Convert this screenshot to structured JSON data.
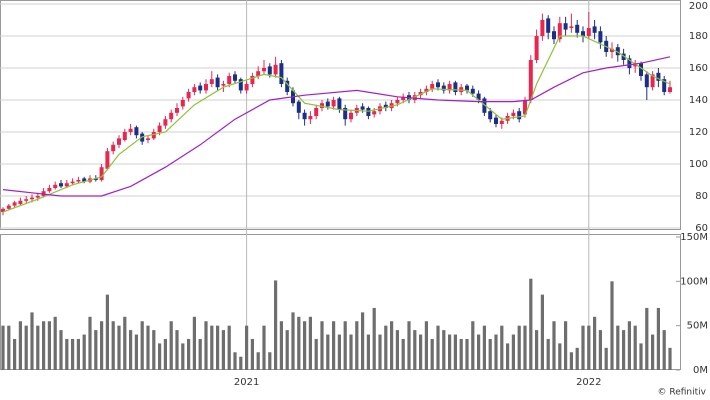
{
  "chart_data": [
    {
      "type": "candlestick",
      "grid": true,
      "up_color": "#e8264f",
      "down_color": "#1c2f86",
      "ylim": [
        60,
        200
      ],
      "yticks": [
        60,
        80,
        100,
        120,
        140,
        160,
        180,
        200
      ],
      "categories": [
        null,
        null,
        null,
        null,
        null,
        null,
        null,
        null,
        null,
        null,
        null,
        null,
        null,
        null,
        null,
        null,
        null,
        null,
        null,
        null,
        null,
        null,
        null,
        null,
        null,
        null,
        null,
        null,
        null,
        null,
        null,
        null,
        null,
        null,
        null,
        null,
        null,
        null,
        null,
        null,
        null,
        null,
        "2021",
        null,
        null,
        null,
        null,
        null,
        null,
        null,
        null,
        null,
        null,
        null,
        null,
        null,
        null,
        null,
        null,
        null,
        null,
        null,
        null,
        null,
        null,
        null,
        null,
        null,
        null,
        null,
        null,
        null,
        null,
        null,
        null,
        null,
        null,
        null,
        null,
        null,
        null,
        null,
        null,
        null,
        null,
        null,
        null,
        null,
        null,
        null,
        null,
        null,
        null,
        null,
        null,
        null,
        null,
        null,
        null,
        null,
        null,
        "2022",
        null,
        null,
        null,
        null,
        null,
        null,
        null,
        null,
        null,
        null,
        null,
        null,
        null,
        null
      ],
      "open": [
        70,
        72,
        74,
        75,
        77,
        78,
        79,
        80,
        83,
        85,
        88,
        86,
        88,
        89,
        91,
        89,
        91,
        90,
        97,
        108,
        112,
        115,
        120,
        123,
        119,
        115,
        116,
        120,
        124,
        128,
        132,
        136,
        141,
        145,
        149,
        146,
        150,
        154,
        149,
        150,
        156,
        153,
        146,
        150,
        155,
        158,
        161,
        156,
        163,
        152,
        146,
        139,
        132,
        128,
        130,
        135,
        139,
        136,
        141,
        135,
        128,
        132,
        136,
        135,
        131,
        133,
        137,
        135,
        138,
        140,
        143,
        140,
        143,
        145,
        147,
        151,
        149,
        146,
        151,
        145,
        149,
        147,
        144,
        141,
        133,
        129,
        125,
        127,
        130,
        133,
        131,
        140,
        165,
        180,
        191,
        183,
        178,
        188,
        185,
        187,
        183,
        180,
        186,
        183,
        177,
        170,
        173,
        169,
        166,
        161,
        163,
        156,
        148,
        157,
        153,
        145
      ],
      "high": [
        73,
        75,
        77,
        79,
        80,
        81,
        82,
        85,
        87,
        89,
        90,
        90,
        91,
        92,
        92,
        93,
        93,
        100,
        110,
        114,
        118,
        122,
        125,
        124,
        120,
        118,
        122,
        126,
        130,
        134,
        138,
        142,
        147,
        150,
        151,
        153,
        158,
        156,
        152,
        157,
        158,
        154,
        152,
        157,
        161,
        165,
        163,
        167,
        165,
        154,
        148,
        140,
        134,
        133,
        137,
        140,
        141,
        142,
        142,
        137,
        134,
        137,
        138,
        136,
        135,
        138,
        139,
        140,
        142,
        144,
        145,
        145,
        147,
        149,
        152,
        153,
        151,
        152,
        152,
        150,
        150,
        149,
        146,
        142,
        135,
        131,
        129,
        132,
        134,
        135,
        142,
        168,
        184,
        194,
        193,
        186,
        192,
        192,
        194,
        190,
        186,
        195,
        190,
        186,
        180,
        176,
        175,
        172,
        168,
        165,
        164,
        158,
        158,
        160,
        155,
        152
      ],
      "low": [
        68,
        71,
        73,
        74,
        75,
        76,
        77,
        79,
        82,
        84,
        85,
        85,
        87,
        88,
        88,
        88,
        89,
        89,
        96,
        106,
        110,
        114,
        118,
        116,
        112,
        113,
        115,
        118,
        122,
        126,
        130,
        134,
        139,
        143,
        144,
        144,
        148,
        146,
        145,
        148,
        150,
        144,
        144,
        148,
        153,
        156,
        154,
        154,
        148,
        143,
        136,
        128,
        124,
        125,
        128,
        133,
        134,
        134,
        132,
        124,
        126,
        130,
        132,
        128,
        129,
        131,
        133,
        133,
        136,
        138,
        138,
        138,
        141,
        143,
        145,
        146,
        144,
        144,
        143,
        143,
        144,
        142,
        138,
        130,
        126,
        123,
        122,
        125,
        128,
        126,
        129,
        138,
        163,
        177,
        178,
        175,
        176,
        180,
        182,
        179,
        176,
        178,
        178,
        172,
        167,
        166,
        164,
        162,
        156,
        157,
        152,
        140,
        146,
        148,
        143,
        144
      ],
      "close": [
        72,
        74,
        76,
        77,
        78,
        79,
        80,
        83,
        85,
        87,
        86,
        88,
        89,
        90,
        89,
        91,
        90,
        98,
        108,
        112,
        116,
        120,
        122,
        118,
        114,
        116,
        120,
        124,
        128,
        132,
        135,
        140,
        145,
        148,
        146,
        150,
        153,
        148,
        150,
        155,
        152,
        146,
        150,
        155,
        158,
        160,
        156,
        162,
        150,
        145,
        138,
        132,
        128,
        130,
        135,
        138,
        136,
        140,
        134,
        128,
        132,
        135,
        134,
        130,
        133,
        136,
        135,
        138,
        140,
        142,
        140,
        143,
        145,
        147,
        150,
        148,
        146,
        150,
        145,
        148,
        146,
        144,
        140,
        132,
        128,
        125,
        127,
        130,
        132,
        128,
        140,
        165,
        180,
        190,
        182,
        178,
        188,
        184,
        186,
        182,
        180,
        185,
        182,
        176,
        170,
        172,
        168,
        165,
        160,
        162,
        155,
        148,
        156,
        152,
        145,
        148
      ],
      "lines": [
        {
          "color": "#8fc23a",
          "x": [
            0,
            6,
            12,
            17,
            20,
            24,
            28,
            33,
            38,
            45,
            48,
            52,
            58,
            63,
            68,
            74,
            80,
            86,
            90,
            92,
            96,
            100,
            106,
            112,
            115
          ],
          "values": [
            70,
            78,
            87,
            92,
            106,
            117,
            120,
            137,
            148,
            156,
            154,
            138,
            134,
            133,
            137,
            147,
            146,
            128,
            130,
            150,
            180,
            180,
            170,
            155,
            150
          ]
        },
        {
          "color": "#a020c8",
          "x": [
            0,
            5,
            10,
            17,
            22,
            28,
            34,
            40,
            46,
            52,
            61,
            68,
            75,
            82,
            88,
            91,
            95,
            100,
            104,
            110,
            115
          ],
          "values": [
            84,
            82,
            80,
            80,
            86,
            98,
            112,
            128,
            140,
            143,
            146,
            142,
            140,
            139,
            139,
            140,
            148,
            157,
            160,
            163,
            167
          ]
        }
      ]
    },
    {
      "type": "bar",
      "color": "#6e6e6e",
      "ylim": [
        0,
        150
      ],
      "yticks": [
        {
          "value": 0,
          "label": "0M"
        },
        {
          "value": 50,
          "label": "50M"
        },
        {
          "value": 100,
          "label": "100M"
        },
        {
          "value": 150,
          "label": "150M"
        }
      ],
      "values": [
        50,
        50,
        35,
        55,
        50,
        65,
        50,
        55,
        55,
        60,
        45,
        35,
        35,
        35,
        40,
        60,
        45,
        55,
        85,
        55,
        50,
        60,
        45,
        40,
        55,
        50,
        45,
        30,
        35,
        55,
        45,
        30,
        35,
        60,
        35,
        55,
        50,
        50,
        45,
        50,
        20,
        15,
        50,
        35,
        20,
        50,
        20,
        101,
        55,
        45,
        65,
        60,
        55,
        60,
        35,
        55,
        40,
        55,
        40,
        55,
        40,
        55,
        65,
        40,
        70,
        40,
        50,
        55,
        45,
        35,
        55,
        45,
        40,
        55,
        35,
        50,
        45,
        40,
        40,
        35,
        35,
        55,
        40,
        50,
        35,
        40,
        50,
        30,
        40,
        50,
        50,
        103,
        45,
        85,
        35,
        55,
        30,
        55,
        20,
        25,
        50,
        50,
        60,
        45,
        25,
        100,
        50,
        45,
        55,
        50,
        30,
        70,
        40,
        70,
        45,
        25
      ]
    }
  ],
  "source": "© Refinitiv"
}
